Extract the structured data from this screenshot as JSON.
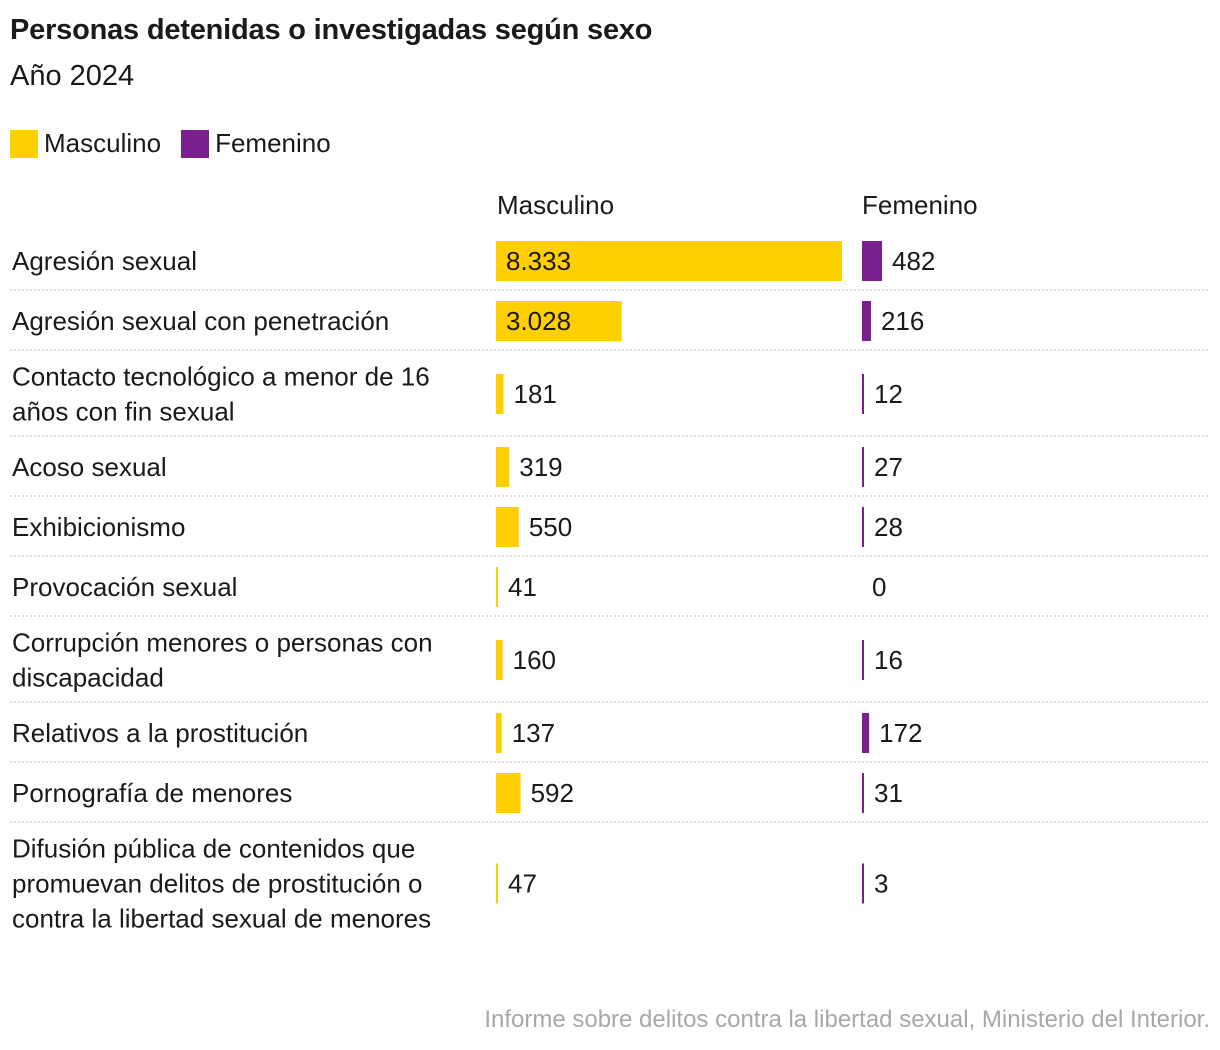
{
  "title": "Personas detenidas o investigadas según sexo",
  "subtitle": "Año 2024",
  "source": "Informe sobre delitos contra la libertad sexual, Ministerio del Interior.",
  "colors": {
    "masculino": "#FFCF00",
    "femenino": "#7B1F8E",
    "divider": "#bdbdbd"
  },
  "chart_data": {
    "type": "bar",
    "legend": [
      "Masculino",
      "Femenino"
    ],
    "legend_position": "top-left",
    "column_headers": [
      "Masculino",
      "Femenino"
    ],
    "categories": [
      [
        "Agresión sexual"
      ],
      [
        "Agresión sexual con penetración"
      ],
      [
        "Contacto tecnológico a menor de 16",
        "años con fin sexual"
      ],
      [
        "Acoso sexual"
      ],
      [
        "Exhibicionismo"
      ],
      [
        "Provocación sexual"
      ],
      [
        "Corrupción menores o personas con",
        "discapacidad"
      ],
      [
        "Relativos a la prostitución"
      ],
      [
        "Pornografía de menores"
      ],
      [
        "Difusión pública de contenidos que",
        "promuevan delitos de prostitución o",
        "contra la libertad sexual de menores"
      ]
    ],
    "series": [
      {
        "name": "Masculino",
        "values": [
          8333,
          3028,
          181,
          319,
          550,
          41,
          160,
          137,
          592,
          47
        ],
        "labels": [
          "8.333",
          "3.028",
          "181",
          "319",
          "550",
          "41",
          "160",
          "137",
          "592",
          "47"
        ]
      },
      {
        "name": "Femenino",
        "values": [
          482,
          216,
          12,
          27,
          28,
          0,
          16,
          172,
          31,
          3
        ],
        "labels": [
          "482",
          "216",
          "12",
          "27",
          "28",
          "0",
          "16",
          "172",
          "31",
          "3"
        ]
      }
    ]
  }
}
